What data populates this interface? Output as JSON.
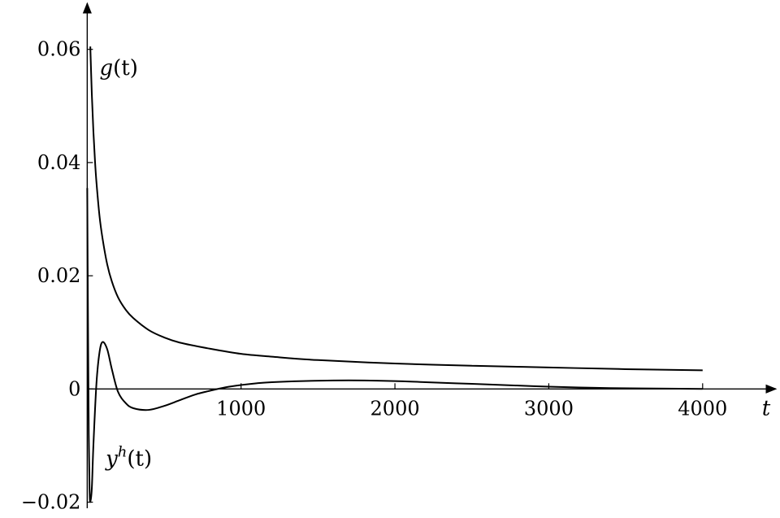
{
  "chart_data": {
    "type": "line",
    "xlabel": "t",
    "ylabel": "",
    "xlim": [
      -60,
      4450
    ],
    "ylim": [
      -0.0205,
      0.068
    ],
    "x_ticks": [
      1000,
      2000,
      3000,
      4000
    ],
    "x_tick_labels": [
      "1000",
      "2000",
      "3000",
      "4000"
    ],
    "y_ticks": [
      -0.02,
      0,
      0.02,
      0.04,
      0.06
    ],
    "y_tick_labels": [
      "−0.02",
      "0",
      "0.02",
      "0.04",
      "0.06"
    ],
    "grid": false,
    "series": [
      {
        "name": "g(t)",
        "label_main": "g",
        "label_sup": "",
        "label_arg": "(t)",
        "x": [
          20,
          30,
          40,
          50,
          60,
          80,
          100,
          130,
          160,
          200,
          250,
          300,
          400,
          500,
          600,
          800,
          1000,
          1200,
          1500,
          2000,
          2500,
          3000,
          3500,
          4000
        ],
        "y": [
          0.0605,
          0.052,
          0.0455,
          0.0405,
          0.0365,
          0.0305,
          0.0265,
          0.022,
          0.019,
          0.0162,
          0.014,
          0.0125,
          0.0104,
          0.0091,
          0.0082,
          0.0071,
          0.0062,
          0.0057,
          0.0051,
          0.0045,
          0.0041,
          0.0038,
          0.0035,
          0.0033
        ]
      },
      {
        "name": "y^h(t)",
        "label_main": "y",
        "label_sup": "h",
        "label_arg": "(t)",
        "x": [
          0,
          5,
          10,
          15,
          20,
          30,
          40,
          60,
          80,
          100,
          130,
          160,
          200,
          250,
          300,
          400,
          500,
          600,
          700,
          800,
          900,
          1000,
          1100,
          1200,
          1400,
          1600,
          1800,
          2000,
          2200,
          2500,
          2800,
          3000,
          3300,
          3600,
          4000
        ],
        "y": [
          0.0355,
          0.012,
          -0.008,
          -0.0175,
          -0.02,
          -0.0175,
          -0.01,
          0.001,
          0.0065,
          0.0083,
          0.007,
          0.0035,
          -0.0005,
          -0.0025,
          -0.0034,
          -0.0037,
          -0.003,
          -0.002,
          -0.001,
          -0.0003,
          0.0003,
          0.0007,
          0.001,
          0.0012,
          0.0014,
          0.0015,
          0.0015,
          0.0014,
          0.0012,
          0.0009,
          0.0006,
          0.0004,
          0.0002,
          0.0001,
          0.0
        ]
      }
    ],
    "curve_label_anchor": [
      {
        "x": 80,
        "y": 0.0555
      },
      {
        "x": 120,
        "y": -0.0135
      }
    ]
  }
}
